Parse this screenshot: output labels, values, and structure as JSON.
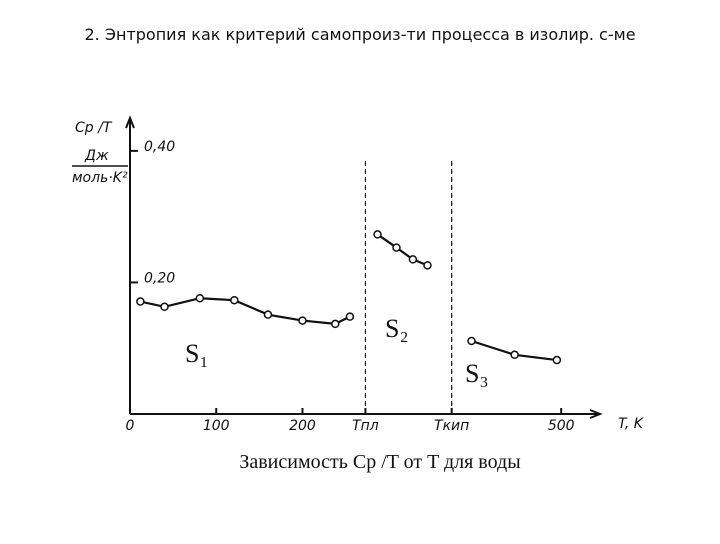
{
  "title": "2. Энтропия как критерий самопроиз-ти  процесса в изолир. с-ме",
  "chart_data": {
    "type": "line",
    "caption": "Зависимость Cp /T от  T  для воды",
    "y_label": "Cp /T",
    "y_unit_top": "Дж",
    "y_unit_bottom": "моль·K²",
    "x_label": "T, K",
    "region_labels": [
      "S₁",
      "S₂",
      "S₃"
    ],
    "xlim": [
      0,
      545
    ],
    "ylim": [
      0,
      0.45
    ],
    "xticks": [
      0,
      100,
      200,
      {
        "value": 273,
        "label": "Tпл"
      },
      {
        "value": 373,
        "label": "Tкип"
      },
      500
    ],
    "yticks": [
      {
        "value": 0.2,
        "label": "0,20"
      },
      {
        "value": 0.4,
        "label": "0,40"
      }
    ],
    "series": [
      {
        "color": "#111111",
        "x": [
          12,
          40,
          81,
          121,
          160,
          200,
          238,
          255
        ],
        "values": [
          0.171,
          0.163,
          0.176,
          0.173,
          0.151,
          0.142,
          0.137,
          0.148
        ]
      },
      {
        "color": "#111111",
        "x": [
          287,
          309,
          328,
          345
        ],
        "values": [
          0.273,
          0.253,
          0.235,
          0.226
        ]
      },
      {
        "color": "#111111",
        "x": [
          396,
          446,
          495
        ],
        "values": [
          0.111,
          0.09,
          0.082
        ]
      }
    ]
  }
}
